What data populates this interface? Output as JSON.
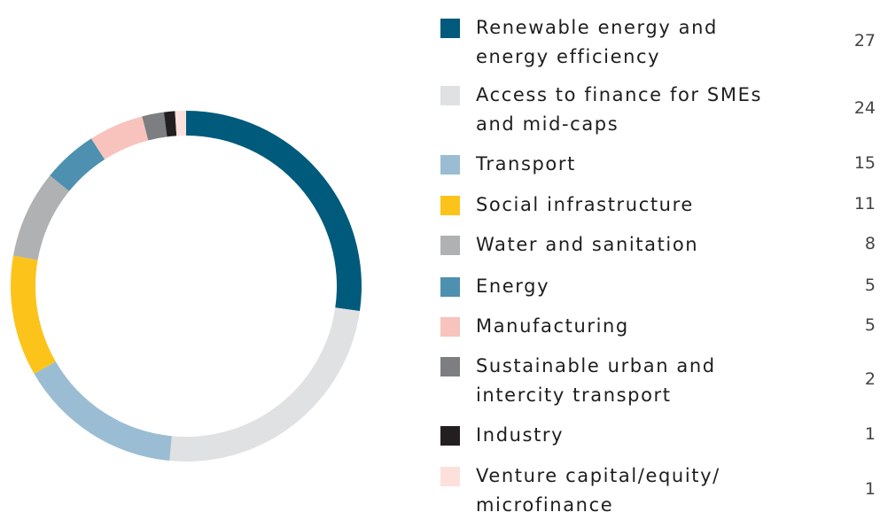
{
  "chart_data": {
    "type": "donut",
    "categories": [
      "Renewable energy and\nenergy efficiency",
      "Access to finance for SMEs\nand mid-caps",
      "Transport",
      "Social infrastructure",
      "Water and sanitation",
      "Energy",
      "Manufacturing",
      "Sustainable urban and\nintercity transport",
      "Industry",
      "Venture capital/equity/\nmicrofinance"
    ],
    "values": [
      27,
      24,
      15,
      11,
      8,
      5,
      5,
      2,
      1,
      1
    ],
    "colors": [
      "#005a7c",
      "#e0e1e2",
      "#9bbdd3",
      "#fcc31a",
      "#b0b1b3",
      "#4e90b0",
      "#f8c3bc",
      "#7d7e81",
      "#231f20",
      "#fde0db"
    ]
  }
}
